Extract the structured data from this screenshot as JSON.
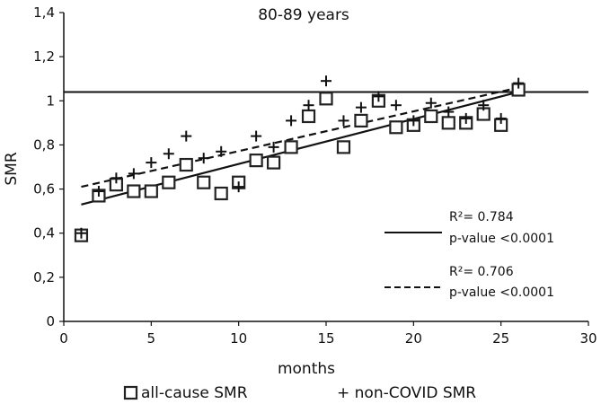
{
  "chart_data": {
    "type": "scatter",
    "title": "80-89 years",
    "xlabel": "months",
    "ylabel": "SMR",
    "xlim": [
      0,
      30
    ],
    "ylim": [
      0,
      1.4
    ],
    "x_ticks": [
      "0",
      "5",
      "10",
      "15",
      "20",
      "25",
      "30"
    ],
    "y_ticks": [
      "0",
      "0,2",
      "0,4",
      "0,6",
      "0,8",
      "1",
      "1,2",
      "1,4"
    ],
    "series": [
      {
        "name": "all-cause SMR",
        "marker": "square",
        "x": [
          1,
          2,
          3,
          4,
          5,
          6,
          7,
          8,
          9,
          10,
          11,
          12,
          13,
          14,
          15,
          16,
          17,
          18,
          19,
          20,
          21,
          22,
          23,
          24,
          25,
          26
        ],
        "y": [
          0.39,
          0.57,
          0.62,
          0.59,
          0.59,
          0.63,
          0.71,
          0.63,
          0.58,
          0.63,
          0.73,
          0.72,
          0.79,
          0.93,
          1.01,
          0.79,
          0.91,
          1.0,
          0.88,
          0.89,
          0.93,
          0.9,
          0.9,
          0.94,
          0.89,
          1.05
        ],
        "trend": {
          "style": "solid",
          "from": [
            1,
            0.53
          ],
          "to": [
            26,
            1.04
          ]
        }
      },
      {
        "name": "non-COVID SMR",
        "marker": "plus",
        "x": [
          1,
          2,
          3,
          4,
          5,
          6,
          7,
          8,
          9,
          10,
          11,
          12,
          13,
          14,
          15,
          16,
          17,
          18,
          19,
          20,
          21,
          22,
          23,
          24,
          25,
          26
        ],
        "y": [
          0.4,
          0.59,
          0.65,
          0.67,
          0.72,
          0.76,
          0.84,
          0.74,
          0.77,
          0.61,
          0.84,
          0.79,
          0.91,
          0.98,
          1.09,
          0.91,
          0.97,
          1.02,
          0.98,
          0.91,
          0.99,
          0.95,
          0.92,
          0.98,
          0.92,
          1.08
        ],
        "trend": {
          "style": "dashed",
          "from": [
            1,
            0.61
          ],
          "to": [
            26,
            1.06
          ]
        }
      }
    ],
    "reference_line": {
      "y": 1.04,
      "style": "solid"
    },
    "annotations": [
      {
        "line_style": "solid",
        "r2": "R²= 0.784",
        "p": "p-value <0.0001"
      },
      {
        "line_style": "dashed",
        "r2": "R²= 0.706",
        "p": "p-value <0.0001"
      }
    ],
    "legend": [
      {
        "marker": "square",
        "label": "all-cause SMR"
      },
      {
        "marker": "plus",
        "label": "+ non-COVID SMR"
      }
    ]
  }
}
